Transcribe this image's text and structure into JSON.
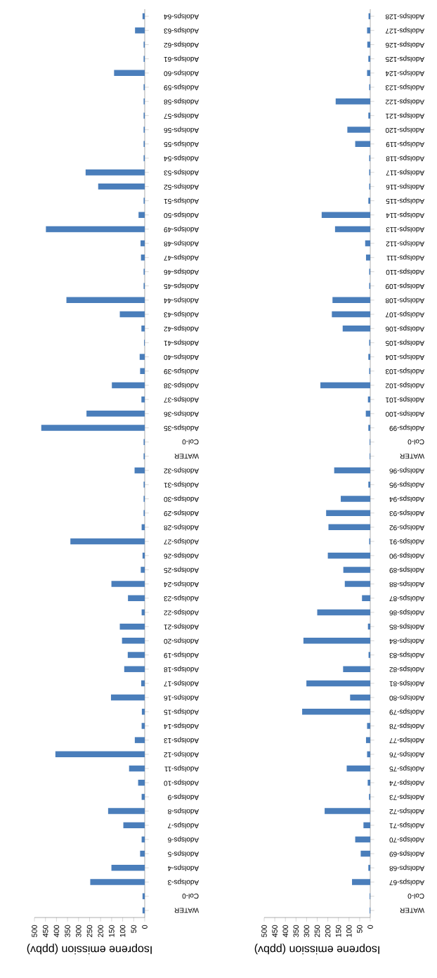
{
  "chart_data": [
    {
      "type": "bar",
      "orientation": "horizontal",
      "xlabel": "Isoprene emission (ppbv)",
      "color": "#4a7ebb",
      "xlim": [
        500,
        0
      ],
      "xticks": [
        0,
        50,
        100,
        150,
        200,
        250,
        300,
        350,
        400,
        450,
        500
      ],
      "categories": [
        "Adolsps-64",
        "Adolsps-63",
        "Adolsps-62",
        "Adolsps-61",
        "Adolsps-60",
        "Adolsps-59",
        "Adolsps-58",
        "Adolsps-57",
        "Adolsps-56",
        "Adolsps-55",
        "Adolsps-54",
        "Adolsps-53",
        "Adolsps-52",
        "Adolsps-51",
        "Adolsps-50",
        "Adolsps-49",
        "Adolsps-48",
        "Adolsps-47",
        "Adolsps-46",
        "Adolsps-45",
        "Adolsps-44",
        "Adolsps-43",
        "Adolsps-42",
        "Adolsps-41",
        "Adolsps-40",
        "Adolsps-39",
        "Adolsps-38",
        "Adolsps-37",
        "Adolsps-36",
        "Adolsps-35",
        "Col-0",
        "WATER",
        "Adolsps-32",
        "Adolsps-31",
        "Adolsps-30",
        "Adolsps-29",
        "Adolsps-28",
        "Adolsps-27",
        "Adolsps-26",
        "Adolsps-25",
        "Adolsps-24",
        "Adolsps-23",
        "Adolsps-22",
        "Adolsps-21",
        "Adolsps-20",
        "Adolsps-19",
        "Adolsps-18",
        "Adolsps-17",
        "Adolsps-16",
        "Adolsps-15",
        "Adolsps-14",
        "Adolsps-13",
        "Adolsps-12",
        "Adolsps-11",
        "Adolsps-10",
        "Adolsps-9",
        "Adolsps-8",
        "Adolsps-7",
        "Adolsps-6",
        "Adolsps-5",
        "Adolsps-4",
        "Adolsps-3",
        "Col-0",
        "WATER"
      ],
      "values": [
        10,
        44,
        5,
        5,
        139,
        5,
        5,
        5,
        5,
        5,
        5,
        268,
        211,
        5,
        28,
        448,
        19,
        17,
        5,
        5,
        355,
        113,
        15,
        3,
        23,
        21,
        149,
        15,
        264,
        469,
        5,
        5,
        46,
        5,
        5,
        5,
        14,
        337,
        10,
        18,
        151,
        76,
        14,
        113,
        103,
        77,
        93,
        16,
        153,
        13,
        14,
        45,
        405,
        71,
        30,
        14,
        166,
        97,
        14,
        21,
        151,
        247,
        10,
        10
      ]
    },
    {
      "type": "bar",
      "orientation": "horizontal",
      "xlabel": "Isoprene emission (ppbv)",
      "color": "#4a7ebb",
      "xlim": [
        500,
        0
      ],
      "xticks": [
        0,
        50,
        100,
        150,
        200,
        250,
        300,
        350,
        400,
        450,
        500
      ],
      "categories": [
        "Adolsps-128",
        "Adolsps-127",
        "Adolsps-126",
        "Adolsps-125",
        "Adolsps-124",
        "Adolsps-123",
        "Adolsps-122",
        "Adolsps-121",
        "Adolsps-120",
        "Adolsps-119",
        "Adolsps-118",
        "Adolsps-117",
        "Adolsps-116",
        "Adolsps-115",
        "Adolsps-114",
        "Adolsps-113",
        "Adolsps-112",
        "Adolsps-111",
        "Adolsps-110",
        "Adolsps-109",
        "Adolsps-108",
        "Adolsps-107",
        "Adolsps-106",
        "Adolsps-105",
        "Adolsps-104",
        "Adolsps-103",
        "Adolsps-102",
        "Adolsps-101",
        "Adolsps-100",
        "Adolsps-99",
        "Col-0",
        "WATER",
        "Adolsps-96",
        "Adolsps-95",
        "Adolsps-94",
        "Adolsps-93",
        "Adolsps-92",
        "Adolsps-91",
        "Adolsps-90",
        "Adolsps-89",
        "Adolsps-88",
        "Adolsps-87",
        "Adolsps-86",
        "Adolsps-85",
        "Adolsps-84",
        "Adolsps-83",
        "Adolsps-82",
        "Adolsps-81",
        "Adolsps-80",
        "Adolsps-79",
        "Adolsps-78",
        "Adolsps-77",
        "Adolsps-76",
        "Adolsps-75",
        "Adolsps-74",
        "Adolsps-73",
        "Adolsps-72",
        "Adolsps-71",
        "Adolsps-70",
        "Adolsps-69",
        "Adolsps-68",
        "Adolsps-67",
        "Col-0",
        "WATER"
      ],
      "values": [
        8,
        15,
        14,
        9,
        15,
        5,
        163,
        9,
        108,
        71,
        5,
        5,
        5,
        9,
        229,
        166,
        24,
        20,
        5,
        5,
        178,
        181,
        130,
        5,
        9,
        5,
        235,
        11,
        21,
        9,
        3,
        3,
        170,
        9,
        139,
        208,
        197,
        5,
        200,
        127,
        120,
        39,
        250,
        11,
        315,
        8,
        128,
        301,
        95,
        321,
        15,
        20,
        15,
        111,
        12,
        6,
        215,
        32,
        71,
        45,
        9,
        86,
        3,
        3
      ]
    }
  ]
}
